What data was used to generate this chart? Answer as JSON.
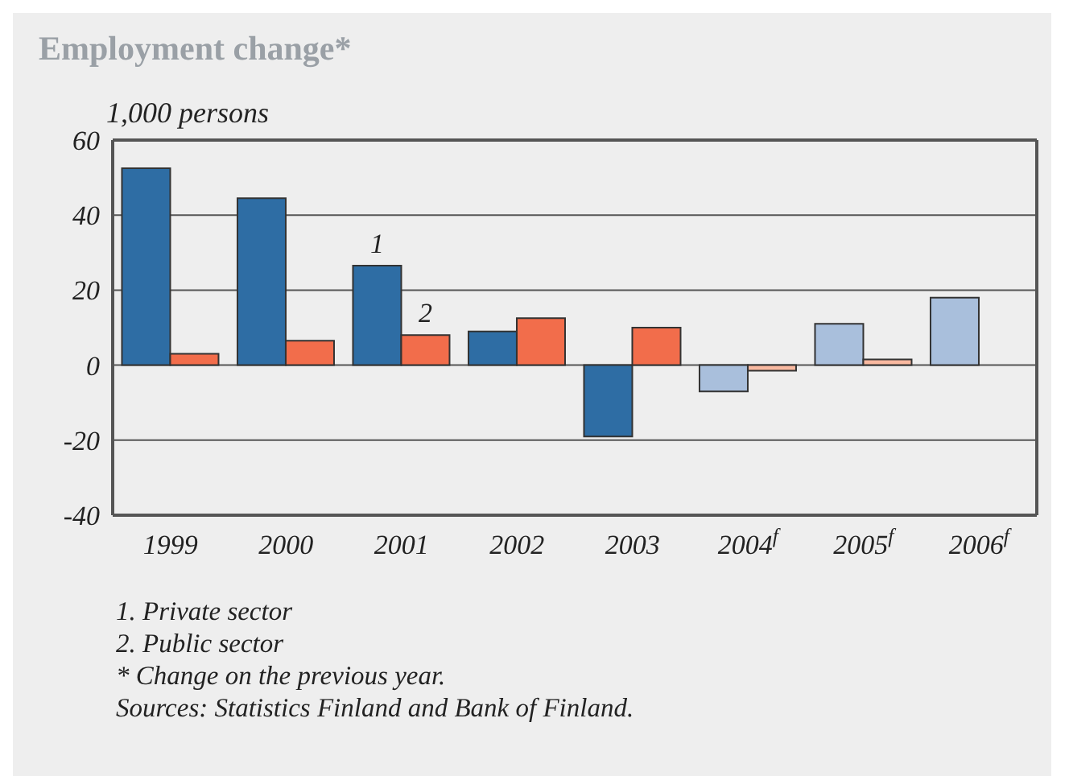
{
  "chart_data": {
    "type": "bar",
    "title": "Employment change*",
    "ylabel": "1,000 persons",
    "categories": [
      "1999",
      "2000",
      "2001",
      "2002",
      "2003",
      "2004$^{f}$",
      "2005$^{f}$",
      "2006$^{f}$"
    ],
    "series": [
      {
        "name": "1",
        "colors": [
          "#2e6da4",
          "#2e6da4",
          "#2e6da4",
          "#2e6da4",
          "#2e6da4",
          "#a9bfdc",
          "#a9bfdc",
          "#a9bfdc"
        ],
        "values": [
          52.5,
          44.5,
          26.5,
          9,
          -19,
          -7,
          11,
          18
        ]
      },
      {
        "name": "2",
        "colors": [
          "#f26d4b",
          "#f26d4b",
          "#f26d4b",
          "#f26d4b",
          "#f26d4b",
          "#f9b9a0",
          "#f9b9a0",
          "#f9b9a0"
        ],
        "values": [
          3,
          6.5,
          8,
          12.5,
          10,
          -1.5,
          1.5,
          0
        ]
      }
    ],
    "ylim": [
      -40,
      60
    ],
    "yticks": [
      -40,
      -20,
      0,
      20,
      40,
      60
    ],
    "grid": "y",
    "legend": false,
    "annotations": [
      "1. Private sector",
      "2. Public sector",
      "* Change on the previous year.",
      "Sources: Statistics Finland and Bank of Finland."
    ]
  }
}
